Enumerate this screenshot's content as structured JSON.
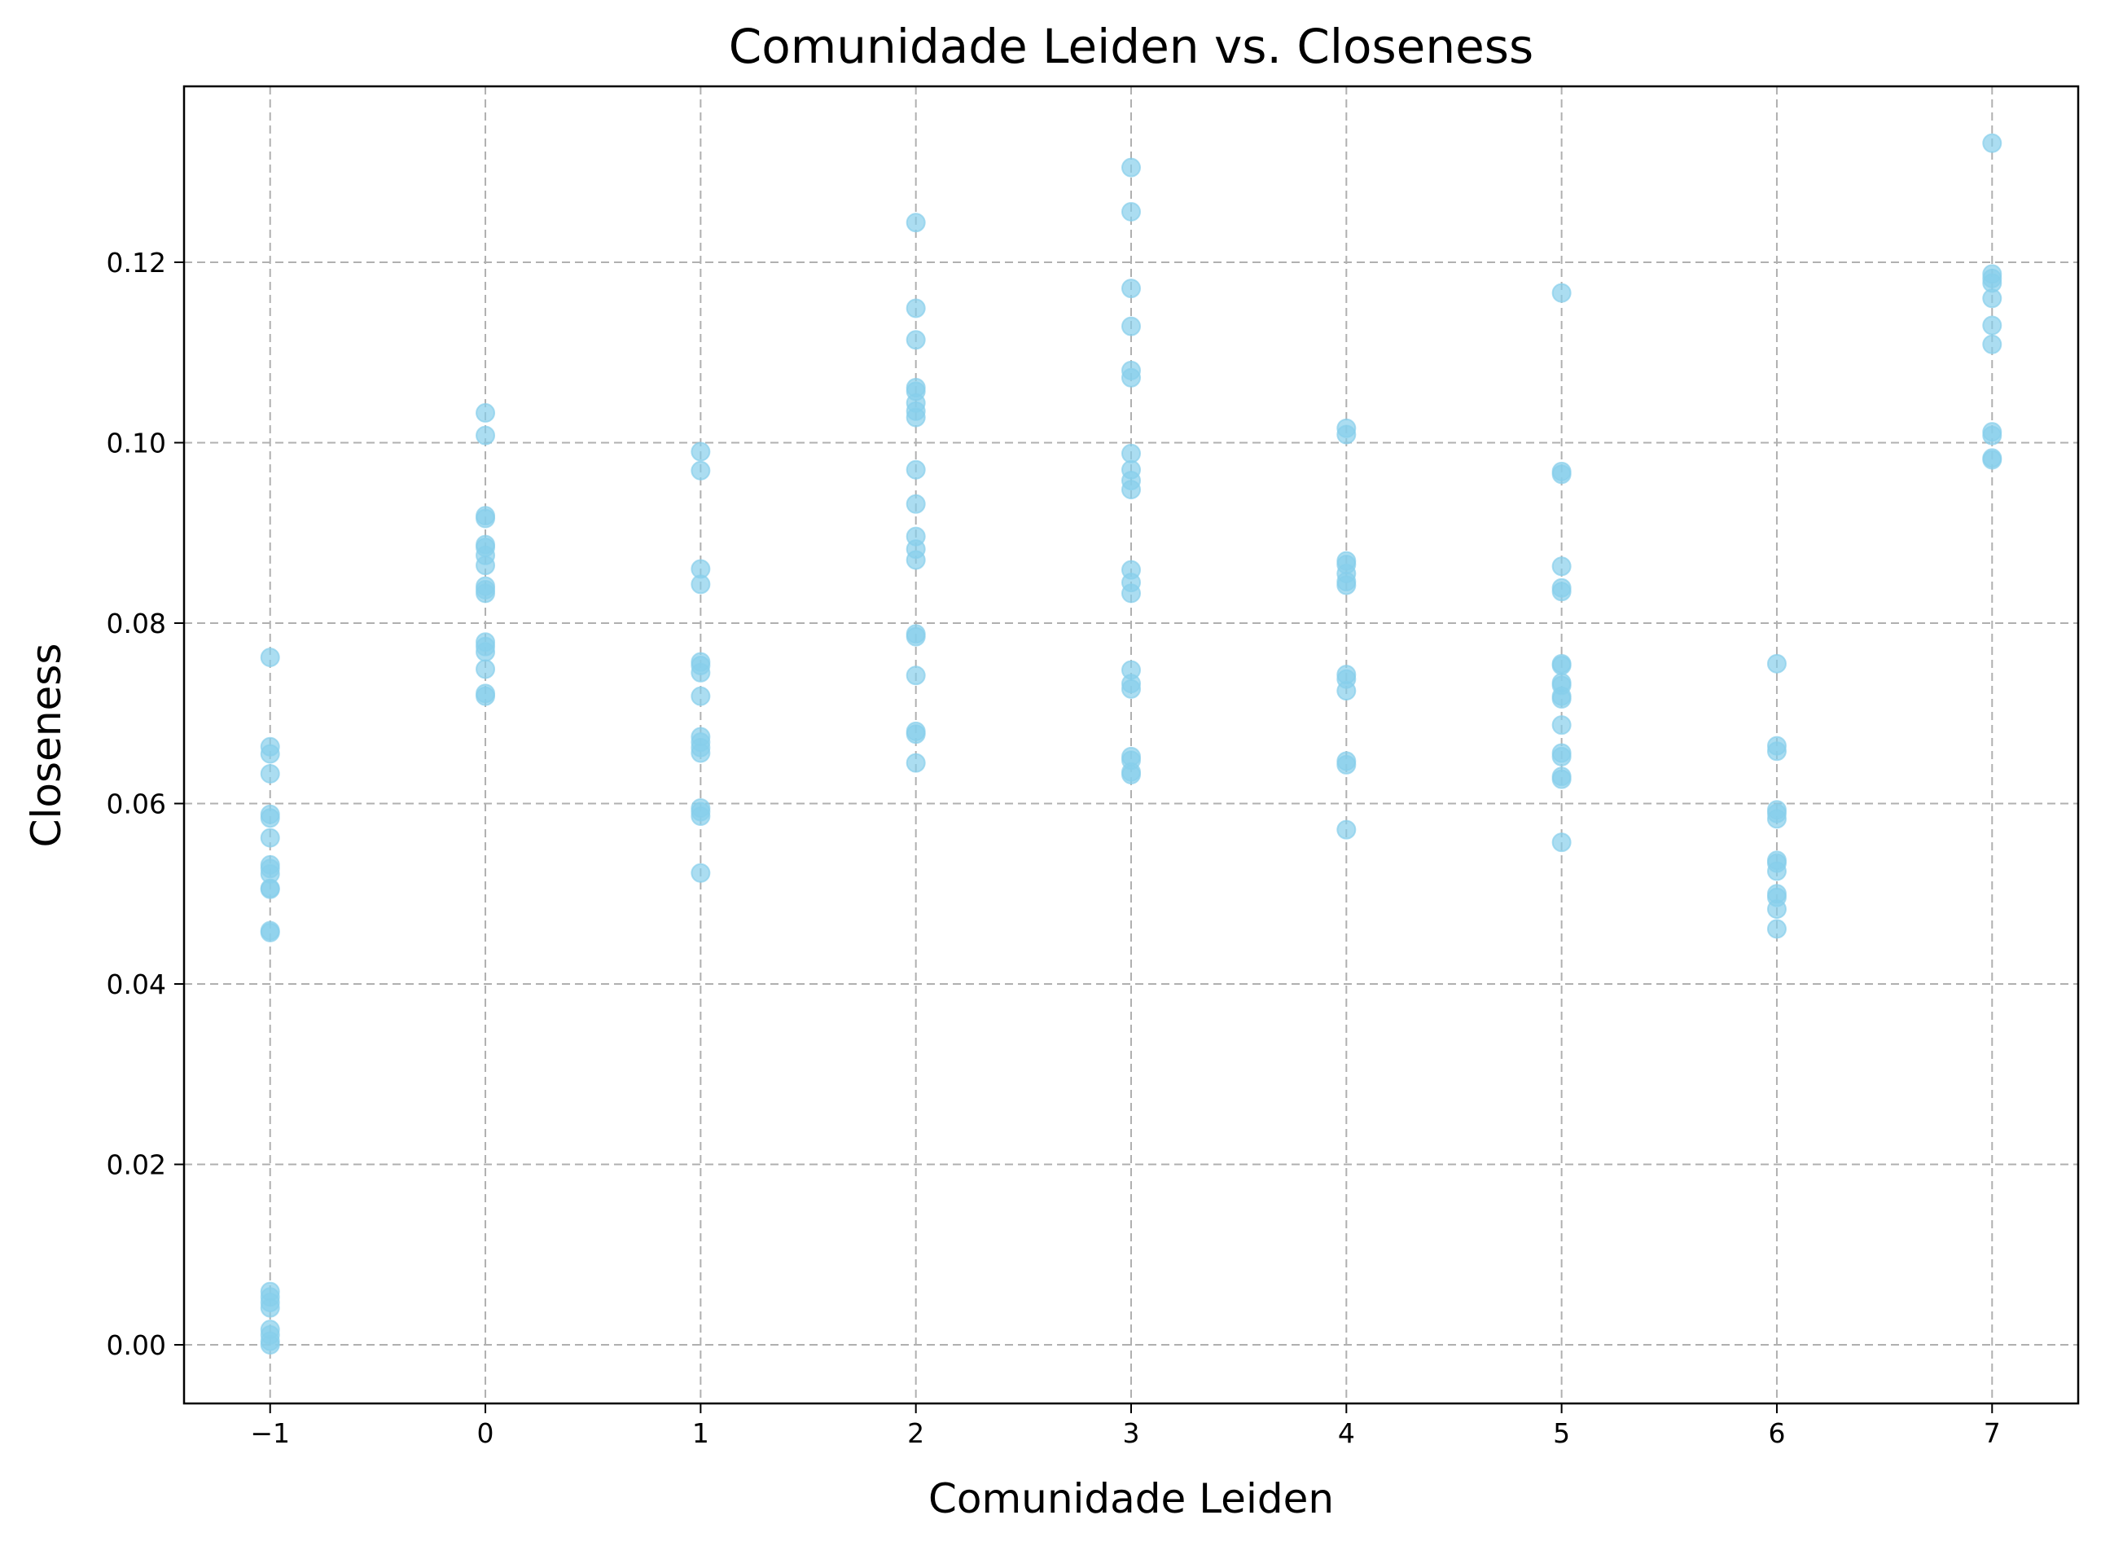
{
  "chart_data": {
    "type": "scatter",
    "title": "Comunidade Leiden vs. Closeness",
    "xlabel": "Comunidade Leiden",
    "ylabel": "Closeness",
    "xlim": [
      -1.4,
      7.4
    ],
    "ylim": [
      -0.0065,
      0.1395
    ],
    "xticks": [
      -1,
      0,
      1,
      2,
      3,
      4,
      5,
      6,
      7
    ],
    "xtick_labels": [
      "−1",
      "0",
      "1",
      "2",
      "3",
      "4",
      "5",
      "6",
      "7"
    ],
    "yticks": [
      0.0,
      0.02,
      0.04,
      0.06,
      0.08,
      0.1,
      0.12
    ],
    "ytick_labels": [
      "0.00",
      "0.02",
      "0.04",
      "0.06",
      "0.08",
      "0.10",
      "0.12"
    ],
    "grid": true,
    "marker_color": "#87ceeb",
    "marker_alpha": 0.7,
    "points": [
      {
        "x": -1,
        "y": 0.0762
      },
      {
        "x": -1,
        "y": 0.0663
      },
      {
        "x": -1,
        "y": 0.0655
      },
      {
        "x": -1,
        "y": 0.0633
      },
      {
        "x": -1,
        "y": 0.0588
      },
      {
        "x": -1,
        "y": 0.0584
      },
      {
        "x": -1,
        "y": 0.0562
      },
      {
        "x": -1,
        "y": 0.0532
      },
      {
        "x": -1,
        "y": 0.0528
      },
      {
        "x": -1,
        "y": 0.0522
      },
      {
        "x": -1,
        "y": 0.0506
      },
      {
        "x": -1,
        "y": 0.0505
      },
      {
        "x": -1,
        "y": 0.0459
      },
      {
        "x": -1,
        "y": 0.0457
      },
      {
        "x": -1,
        "y": 0.0059
      },
      {
        "x": -1,
        "y": 0.0053
      },
      {
        "x": -1,
        "y": 0.0047
      },
      {
        "x": -1,
        "y": 0.0041
      },
      {
        "x": -1,
        "y": 0.0017
      },
      {
        "x": -1,
        "y": 0.0011
      },
      {
        "x": -1,
        "y": 0.0004
      },
      {
        "x": -1,
        "y": 0.0
      },
      {
        "x": 0,
        "y": 0.1033
      },
      {
        "x": 0,
        "y": 0.1008
      },
      {
        "x": 0,
        "y": 0.0919
      },
      {
        "x": 0,
        "y": 0.0916
      },
      {
        "x": 0,
        "y": 0.0887
      },
      {
        "x": 0,
        "y": 0.0884
      },
      {
        "x": 0,
        "y": 0.0875
      },
      {
        "x": 0,
        "y": 0.0864
      },
      {
        "x": 0,
        "y": 0.0841
      },
      {
        "x": 0,
        "y": 0.0837
      },
      {
        "x": 0,
        "y": 0.0833
      },
      {
        "x": 0,
        "y": 0.0779
      },
      {
        "x": 0,
        "y": 0.0774
      },
      {
        "x": 0,
        "y": 0.0768
      },
      {
        "x": 0,
        "y": 0.0749
      },
      {
        "x": 0,
        "y": 0.0722
      },
      {
        "x": 0,
        "y": 0.0719
      },
      {
        "x": 1,
        "y": 0.099
      },
      {
        "x": 1,
        "y": 0.0969
      },
      {
        "x": 1,
        "y": 0.086
      },
      {
        "x": 1,
        "y": 0.0843
      },
      {
        "x": 1,
        "y": 0.0757
      },
      {
        "x": 1,
        "y": 0.0753
      },
      {
        "x": 1,
        "y": 0.0745
      },
      {
        "x": 1,
        "y": 0.0719
      },
      {
        "x": 1,
        "y": 0.0674
      },
      {
        "x": 1,
        "y": 0.0668
      },
      {
        "x": 1,
        "y": 0.0662
      },
      {
        "x": 1,
        "y": 0.0656
      },
      {
        "x": 1,
        "y": 0.0595
      },
      {
        "x": 1,
        "y": 0.0591
      },
      {
        "x": 1,
        "y": 0.0586
      },
      {
        "x": 1,
        "y": 0.0523
      },
      {
        "x": 2,
        "y": 0.1244
      },
      {
        "x": 2,
        "y": 0.1149
      },
      {
        "x": 2,
        "y": 0.1114
      },
      {
        "x": 2,
        "y": 0.1061
      },
      {
        "x": 2,
        "y": 0.1057
      },
      {
        "x": 2,
        "y": 0.1044
      },
      {
        "x": 2,
        "y": 0.1035
      },
      {
        "x": 2,
        "y": 0.1028
      },
      {
        "x": 2,
        "y": 0.097
      },
      {
        "x": 2,
        "y": 0.0932
      },
      {
        "x": 2,
        "y": 0.0896
      },
      {
        "x": 2,
        "y": 0.0882
      },
      {
        "x": 2,
        "y": 0.087
      },
      {
        "x": 2,
        "y": 0.0788
      },
      {
        "x": 2,
        "y": 0.0785
      },
      {
        "x": 2,
        "y": 0.0742
      },
      {
        "x": 2,
        "y": 0.068
      },
      {
        "x": 2,
        "y": 0.0677
      },
      {
        "x": 2,
        "y": 0.0645
      },
      {
        "x": 3,
        "y": 0.1305
      },
      {
        "x": 3,
        "y": 0.1256
      },
      {
        "x": 3,
        "y": 0.1171
      },
      {
        "x": 3,
        "y": 0.1129
      },
      {
        "x": 3,
        "y": 0.108
      },
      {
        "x": 3,
        "y": 0.1072
      },
      {
        "x": 3,
        "y": 0.0988
      },
      {
        "x": 3,
        "y": 0.097
      },
      {
        "x": 3,
        "y": 0.0958
      },
      {
        "x": 3,
        "y": 0.0948
      },
      {
        "x": 3,
        "y": 0.0859
      },
      {
        "x": 3,
        "y": 0.0845
      },
      {
        "x": 3,
        "y": 0.0833
      },
      {
        "x": 3,
        "y": 0.0748
      },
      {
        "x": 3,
        "y": 0.0733
      },
      {
        "x": 3,
        "y": 0.0727
      },
      {
        "x": 3,
        "y": 0.0652
      },
      {
        "x": 3,
        "y": 0.0648
      },
      {
        "x": 3,
        "y": 0.0635
      },
      {
        "x": 3,
        "y": 0.0632
      },
      {
        "x": 4,
        "y": 0.1016
      },
      {
        "x": 4,
        "y": 0.1009
      },
      {
        "x": 4,
        "y": 0.0869
      },
      {
        "x": 4,
        "y": 0.0865
      },
      {
        "x": 4,
        "y": 0.0855
      },
      {
        "x": 4,
        "y": 0.0846
      },
      {
        "x": 4,
        "y": 0.0842
      },
      {
        "x": 4,
        "y": 0.0743
      },
      {
        "x": 4,
        "y": 0.0738
      },
      {
        "x": 4,
        "y": 0.0725
      },
      {
        "x": 4,
        "y": 0.0647
      },
      {
        "x": 4,
        "y": 0.0643
      },
      {
        "x": 4,
        "y": 0.0571
      },
      {
        "x": 5,
        "y": 0.1166
      },
      {
        "x": 5,
        "y": 0.0968
      },
      {
        "x": 5,
        "y": 0.0965
      },
      {
        "x": 5,
        "y": 0.0863
      },
      {
        "x": 5,
        "y": 0.0839
      },
      {
        "x": 5,
        "y": 0.0835
      },
      {
        "x": 5,
        "y": 0.0755
      },
      {
        "x": 5,
        "y": 0.0753
      },
      {
        "x": 5,
        "y": 0.0734
      },
      {
        "x": 5,
        "y": 0.0731
      },
      {
        "x": 5,
        "y": 0.0719
      },
      {
        "x": 5,
        "y": 0.0716
      },
      {
        "x": 5,
        "y": 0.0687
      },
      {
        "x": 5,
        "y": 0.0656
      },
      {
        "x": 5,
        "y": 0.0652
      },
      {
        "x": 5,
        "y": 0.063
      },
      {
        "x": 5,
        "y": 0.0627
      },
      {
        "x": 5,
        "y": 0.0557
      },
      {
        "x": 6,
        "y": 0.0755
      },
      {
        "x": 6,
        "y": 0.0664
      },
      {
        "x": 6,
        "y": 0.0658
      },
      {
        "x": 6,
        "y": 0.0593
      },
      {
        "x": 6,
        "y": 0.0589
      },
      {
        "x": 6,
        "y": 0.0583
      },
      {
        "x": 6,
        "y": 0.0537
      },
      {
        "x": 6,
        "y": 0.0534
      },
      {
        "x": 6,
        "y": 0.0525
      },
      {
        "x": 6,
        "y": 0.05
      },
      {
        "x": 6,
        "y": 0.0496
      },
      {
        "x": 6,
        "y": 0.0483
      },
      {
        "x": 6,
        "y": 0.0461
      },
      {
        "x": 7,
        "y": 0.1332
      },
      {
        "x": 7,
        "y": 0.1187
      },
      {
        "x": 7,
        "y": 0.1182
      },
      {
        "x": 7,
        "y": 0.1177
      },
      {
        "x": 7,
        "y": 0.116
      },
      {
        "x": 7,
        "y": 0.113
      },
      {
        "x": 7,
        "y": 0.1109
      },
      {
        "x": 7,
        "y": 0.1012
      },
      {
        "x": 7,
        "y": 0.1008
      },
      {
        "x": 7,
        "y": 0.0983
      },
      {
        "x": 7,
        "y": 0.0981
      }
    ]
  }
}
